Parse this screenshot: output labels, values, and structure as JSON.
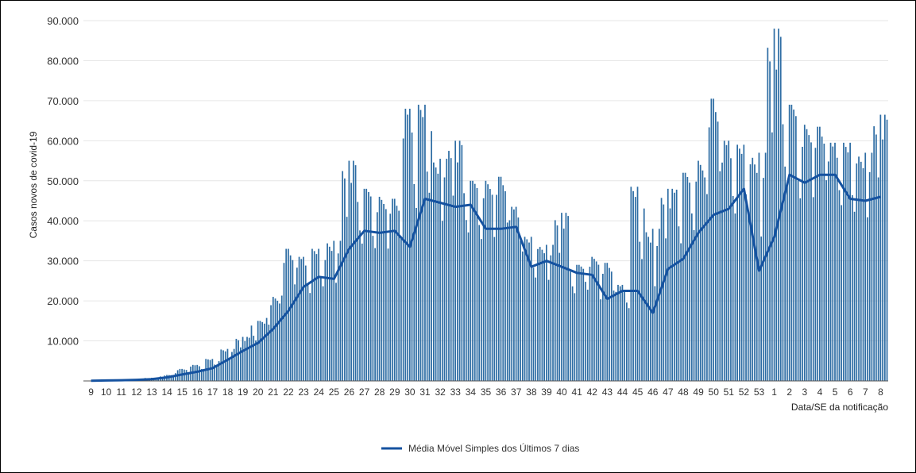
{
  "chart_data": {
    "type": "bar",
    "ylabel": "Casos novos de covid-19",
    "xlabel": "Data/SE da notificação",
    "ylim": [
      0,
      90000
    ],
    "yticks": [
      10000,
      20000,
      30000,
      40000,
      50000,
      60000,
      70000,
      80000,
      90000
    ],
    "ytick_labels": [
      "10.000",
      "20.000",
      "30.000",
      "40.000",
      "50.000",
      "60.000",
      "70.000",
      "80.000",
      "90.000"
    ],
    "grid": true,
    "legend_position": "bottom",
    "colors": {
      "bars": "#2e6da4",
      "line": "#1552a0"
    },
    "week_labels": [
      "9",
      "10",
      "11",
      "12",
      "13",
      "14",
      "15",
      "16",
      "17",
      "18",
      "19",
      "20",
      "21",
      "22",
      "23",
      "24",
      "25",
      "26",
      "27",
      "28",
      "29",
      "30",
      "31",
      "32",
      "33",
      "34",
      "35",
      "36",
      "37",
      "38",
      "39",
      "40",
      "41",
      "42",
      "43",
      "44",
      "45",
      "46",
      "47",
      "48",
      "49",
      "50",
      "51",
      "52",
      "53",
      "1",
      "2",
      "3",
      "4",
      "5",
      "6",
      "7",
      "8"
    ],
    "weekly_values": {
      "Média Móvel Simples dos Últimos 7 dias": [
        60,
        120,
        180,
        280,
        450,
        900,
        1600,
        2300,
        3200,
        5300,
        7500,
        9500,
        13000,
        17500,
        23500,
        26000,
        25500,
        33000,
        37500,
        37000,
        37500,
        33500,
        45500,
        44500,
        43500,
        44000,
        38000,
        38000,
        38500,
        28500,
        30000,
        28500,
        27000,
        26500,
        20500,
        22500,
        22500,
        17000,
        28000,
        30500,
        37000,
        41500,
        43000,
        48000,
        27500,
        36000,
        51500,
        49500,
        51500,
        51500,
        45500,
        45000,
        46000
      ],
      "max_daily_cases": [
        100,
        200,
        300,
        500,
        800,
        1500,
        3000,
        4000,
        5500,
        8000,
        11000,
        15000,
        21000,
        33000,
        31000,
        33000,
        35000,
        55000,
        48000,
        46000,
        45500,
        68000,
        69000,
        55500,
        60000,
        50000,
        50000,
        51000,
        43500,
        36000,
        34000,
        42000,
        29000,
        31000,
        29500,
        24000,
        48500,
        38000,
        48000,
        52000,
        55000,
        70500,
        60000,
        59000,
        57000,
        88000,
        69000,
        64000,
        63500,
        59500,
        59500,
        57000,
        66500
      ]
    },
    "series": [
      {
        "name": "Média Móvel Simples dos Últimos 7 dias",
        "type": "line"
      }
    ]
  }
}
